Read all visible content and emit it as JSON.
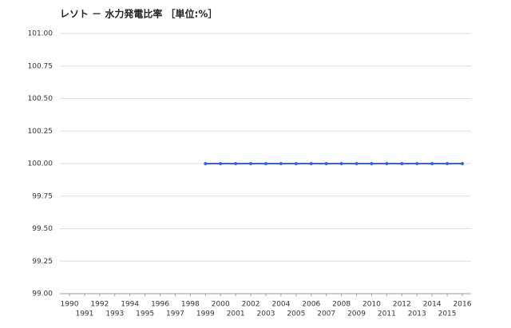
{
  "chart_data": {
    "type": "line",
    "title": "レソト － 水力発電比率 ［単位:%］",
    "x": [
      1990,
      1991,
      1992,
      1993,
      1994,
      1995,
      1996,
      1997,
      1998,
      1999,
      2000,
      2001,
      2002,
      2003,
      2004,
      2005,
      2006,
      2007,
      2008,
      2009,
      2010,
      2011,
      2012,
      2013,
      2014,
      2015,
      2016
    ],
    "values": [
      null,
      null,
      null,
      null,
      null,
      null,
      null,
      null,
      null,
      100,
      100,
      100,
      100,
      100,
      100,
      100,
      100,
      100,
      100,
      100,
      100,
      100,
      100,
      100,
      100,
      100,
      100
    ],
    "color": "#3366cc",
    "xlim": [
      1990,
      2016
    ],
    "xticks": [
      1990,
      1991,
      1992,
      1993,
      1994,
      1995,
      1996,
      1997,
      1998,
      1999,
      2000,
      2001,
      2002,
      2003,
      2004,
      2005,
      2006,
      2007,
      2008,
      2009,
      2010,
      2011,
      2012,
      2013,
      2014,
      2015,
      2016
    ],
    "ylim": [
      99,
      101
    ],
    "yticks": [
      {
        "value": 99,
        "label": "99.00"
      },
      {
        "value": 99.25,
        "label": "99.25"
      },
      {
        "value": 99.5,
        "label": "99.50"
      },
      {
        "value": 99.75,
        "label": "99.75"
      },
      {
        "value": 100,
        "label": "100.00"
      },
      {
        "value": 100.25,
        "label": "100.25"
      },
      {
        "value": 100.5,
        "label": "100.50"
      },
      {
        "value": 100.75,
        "label": "100.75"
      },
      {
        "value": 101,
        "label": "101.00"
      }
    ],
    "grid": true
  }
}
